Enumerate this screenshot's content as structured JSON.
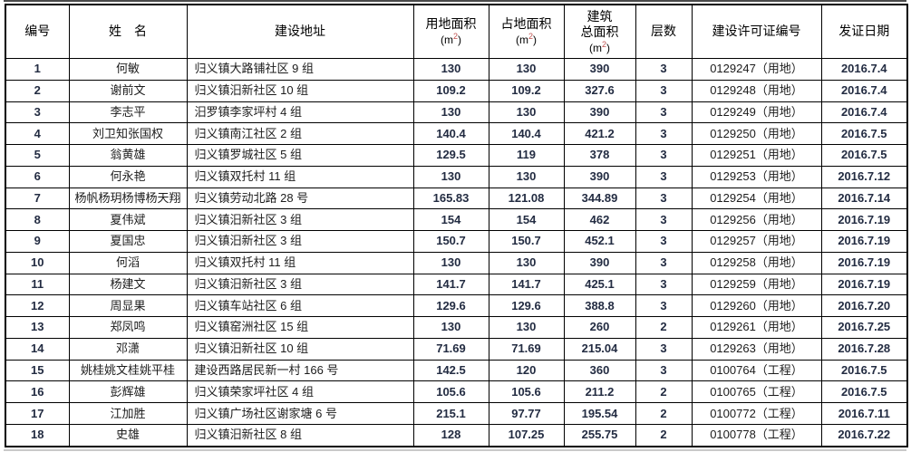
{
  "table": {
    "unit": {
      "pre": "(m",
      "sup": "2",
      "post": ")"
    },
    "columns": [
      {
        "key": "id",
        "label": "编号",
        "num": true
      },
      {
        "key": "name",
        "label": "姓　名",
        "num": false
      },
      {
        "key": "address",
        "label": "建设地址",
        "num": false,
        "align": "left"
      },
      {
        "key": "land_area",
        "label": "用地面积",
        "num": true,
        "unit": true
      },
      {
        "key": "footprint_area",
        "label": "占地面积",
        "num": true,
        "unit": true
      },
      {
        "key": "total_floor_area",
        "label": "建筑总面积",
        "label_lines": [
          "建筑",
          "总面积"
        ],
        "num": true,
        "unit": true
      },
      {
        "key": "floors",
        "label": "层数",
        "num": true
      },
      {
        "key": "permit_no",
        "label": "建设许可证编号",
        "num": false
      },
      {
        "key": "issue_date",
        "label": "发证日期",
        "num": true
      }
    ],
    "rows": [
      [
        "1",
        "何敏",
        "归义镇大路铺社区 9 组",
        "130",
        "130",
        "390",
        "3",
        "0129247（用地）",
        "2016.7.4"
      ],
      [
        "2",
        "谢前文",
        "归义镇汨新社区 10 组",
        "109.2",
        "109.2",
        "327.6",
        "3",
        "0129248（用地）",
        "2016.7.4"
      ],
      [
        "3",
        "李志平",
        "汨罗镇李家坪村 4 组",
        "130",
        "130",
        "390",
        "3",
        "0129249（用地）",
        "2016.7.4"
      ],
      [
        "4",
        "刘卫知张国权",
        "归义镇南江社区 2 组",
        "140.4",
        "140.4",
        "421.2",
        "3",
        "0129250（用地）",
        "2016.7.5"
      ],
      [
        "5",
        "翁黄雄",
        "归义镇罗城社区 5 组",
        "129.5",
        "119",
        "378",
        "3",
        "0129251（用地）",
        "2016.7.5"
      ],
      [
        "6",
        "何永艳",
        "归义镇双托村 11 组",
        "130",
        "130",
        "390",
        "3",
        "0129253（用地）",
        "2016.7.12"
      ],
      [
        "7",
        "杨帆杨玥杨博杨天翔",
        "归义镇劳动北路 28 号",
        "165.83",
        "121.08",
        "344.89",
        "3",
        "0129254（用地）",
        "2016.7.14"
      ],
      [
        "8",
        "夏伟斌",
        "归义镇汨新社区 3 组",
        "154",
        "154",
        "462",
        "3",
        "0129256（用地）",
        "2016.7.19"
      ],
      [
        "9",
        "夏国忠",
        "归义镇汨新社区 3 组",
        "150.7",
        "150.7",
        "452.1",
        "3",
        "0129257（用地）",
        "2016.7.19"
      ],
      [
        "10",
        "何滔",
        "归义镇双托村 11 组",
        "130",
        "130",
        "390",
        "3",
        "0129258（用地）",
        "2016.7.19"
      ],
      [
        "11",
        "杨建文",
        "归义镇汨新社区 3 组",
        "141.7",
        "141.7",
        "425.1",
        "3",
        "0129259（用地）",
        "2016.7.19"
      ],
      [
        "12",
        "周显果",
        "归义镇车站社区 6 组",
        "129.6",
        "129.6",
        "388.8",
        "3",
        "0129260（用地）",
        "2016.7.20"
      ],
      [
        "13",
        "郑凤鸣",
        "归义镇窑洲社区 15 组",
        "130",
        "130",
        "260",
        "2",
        "0129261（用地）",
        "2016.7.25"
      ],
      [
        "14",
        "邓潇",
        "归义镇汨新社区 10 组",
        "71.69",
        "71.69",
        "215.04",
        "3",
        "0129263（用地）",
        "2016.7.28"
      ],
      [
        "15",
        "姚桂姚文桂姚平桂",
        "建设西路居民新一村 166 号",
        "142.5",
        "120",
        "360",
        "3",
        "0100764（工程）",
        "2016.7.5"
      ],
      [
        "16",
        "彭辉雄",
        "归义镇荣家坪社区 4 组",
        "105.6",
        "105.6",
        "211.2",
        "2",
        "0100765（工程）",
        "2016.7.5"
      ],
      [
        "17",
        "江加胜",
        "归义镇广场社区谢家塘 6 号",
        "215.1",
        "97.77",
        "195.54",
        "2",
        "0100772（工程）",
        "2016.7.11"
      ],
      [
        "18",
        "史雄",
        "归义镇汨新社区 8 组",
        "128",
        "107.25",
        "255.75",
        "2",
        "0100778（工程）",
        "2016.7.22"
      ]
    ]
  }
}
